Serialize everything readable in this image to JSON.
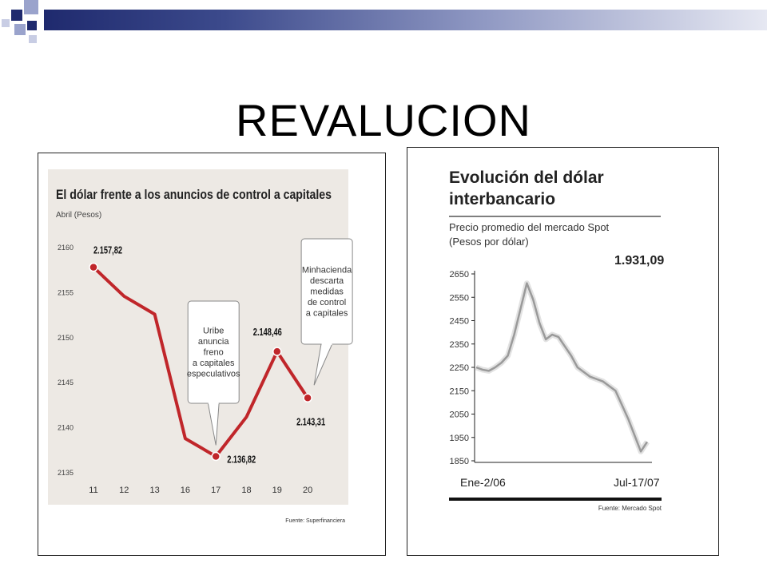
{
  "slide": {
    "title": "REVALUCION"
  },
  "colors": {
    "brand_dark": "#1f2a6e",
    "line_red": "#c0262a",
    "chart1_bg": "#ede9e4",
    "chart2_line": "#9a9a9a"
  },
  "chart_data": [
    {
      "type": "line",
      "title": "El dólar frente a los anuncios de control a capitales",
      "ylabel": "Abril (Pesos)",
      "categories": [
        "11",
        "12",
        "13",
        "16",
        "17",
        "18",
        "19",
        "20"
      ],
      "series": [
        {
          "values": [
            2157.82,
            2154.6,
            2152.6,
            2138.8,
            2136.82,
            2141.2,
            2148.46,
            2143.31
          ]
        }
      ],
      "ylim": [
        2135,
        2160
      ],
      "yticks": [
        "2160",
        "2155",
        "2150",
        "2145",
        "2140",
        "2135"
      ],
      "data_labels": [
        {
          "index": 0,
          "text": "2.157,82"
        },
        {
          "index": 4,
          "text": "2.136,82"
        },
        {
          "index": 6,
          "text": "2.148,46"
        },
        {
          "index": 7,
          "text": "2.143,31"
        }
      ],
      "annotations": [
        {
          "index": 4,
          "lines": [
            "Uribe",
            "anuncia",
            "freno",
            "a capitales",
            "especulativos"
          ]
        },
        {
          "index": 7,
          "lines": [
            "Minhacienda",
            "descarta",
            "medidas",
            "de control",
            "a capitales"
          ]
        }
      ],
      "source": "Fuente: Superfinanciera",
      "grid": false
    },
    {
      "type": "line",
      "title_lines": [
        "Evolución del dólar",
        "interbancario"
      ],
      "subtitle_lines": [
        "Precio promedio del mercado Spot",
        "(Pesos por dólar)"
      ],
      "x_start_label": "Ene-2/06",
      "x_end_label": "Jul-17/07",
      "last_value_label": "1.931,09",
      "ylim": [
        1850,
        2650
      ],
      "yticks": [
        "2650",
        "2550",
        "2450",
        "2350",
        "2250",
        "2150",
        "2050",
        "1950",
        "1850"
      ],
      "series": [
        {
          "values": [
            2250,
            2240,
            2235,
            2250,
            2270,
            2300,
            2390,
            2500,
            2610,
            2540,
            2440,
            2370,
            2390,
            2380,
            2340,
            2300,
            2250,
            2230,
            2210,
            2200,
            2190,
            2170,
            2150,
            2090,
            2030,
            1960,
            1890,
            1931.09
          ]
        }
      ],
      "source": "Fuente: Mercado Spot",
      "grid": false
    }
  ]
}
